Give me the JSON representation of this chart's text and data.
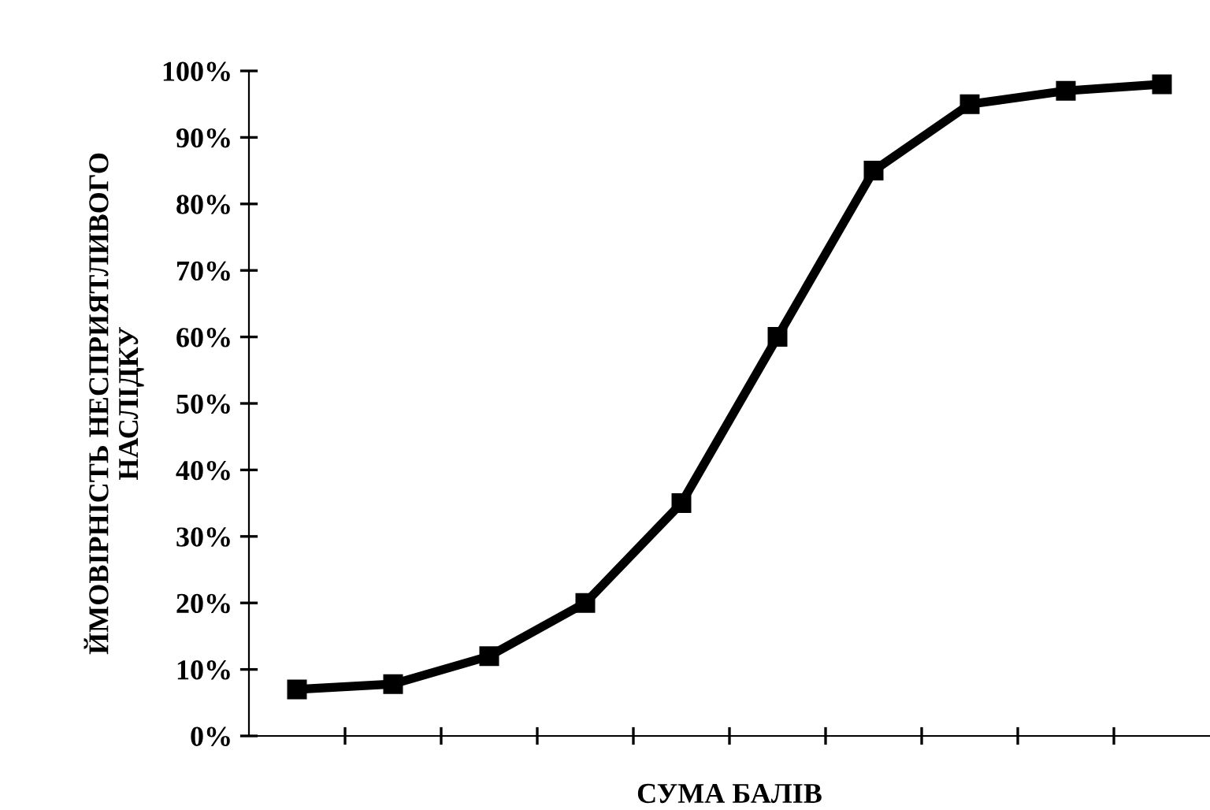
{
  "chart_data": {
    "type": "line",
    "xlabel": "СУМА БАЛІВ",
    "ylabel": "ЙМОВІРНІСТЬ НЕСПРИЯТЛИВОГО\nНАСЛІДКУ",
    "categories": [
      null,
      null,
      null,
      null,
      null,
      null,
      null,
      null,
      null,
      null
    ],
    "series": [
      {
        "color": "#000000",
        "values": [
          7,
          7.8,
          12,
          20,
          35,
          60,
          85,
          95,
          97,
          98
        ]
      }
    ],
    "ylim": [
      0,
      100
    ],
    "yticks": [
      {
        "value": 0,
        "label": "0%"
      },
      {
        "value": 10,
        "label": "10%"
      },
      {
        "value": 20,
        "label": "20%"
      },
      {
        "value": 30,
        "label": "30%"
      },
      {
        "value": 40,
        "label": "40%"
      },
      {
        "value": 50,
        "label": "50%"
      },
      {
        "value": 60,
        "label": "60%"
      },
      {
        "value": 70,
        "label": "70%"
      },
      {
        "value": 80,
        "label": "80%"
      },
      {
        "value": 90,
        "label": "90%"
      },
      {
        "value": 100,
        "label": "100%"
      }
    ],
    "marker": "square",
    "line_style": "solid",
    "grid": false,
    "legend": false
  }
}
